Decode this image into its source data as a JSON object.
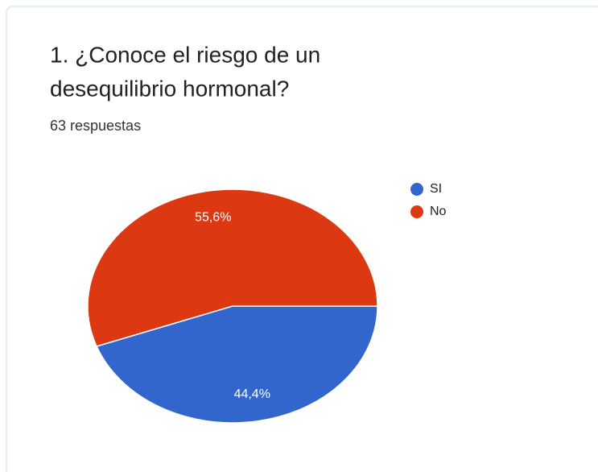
{
  "chart_data": {
    "type": "pie",
    "title": [
      "1. ¿Conoce el riesgo de un",
      "desequilibrio hormonal?"
    ],
    "subtitle": "63 respuestas",
    "categories": [
      "SI",
      "No"
    ],
    "values": [
      44.4,
      55.6
    ],
    "value_labels": [
      "44,4%",
      "55,6%"
    ],
    "colors": [
      "#3366cc",
      "#dc3912"
    ],
    "legend": "right"
  }
}
